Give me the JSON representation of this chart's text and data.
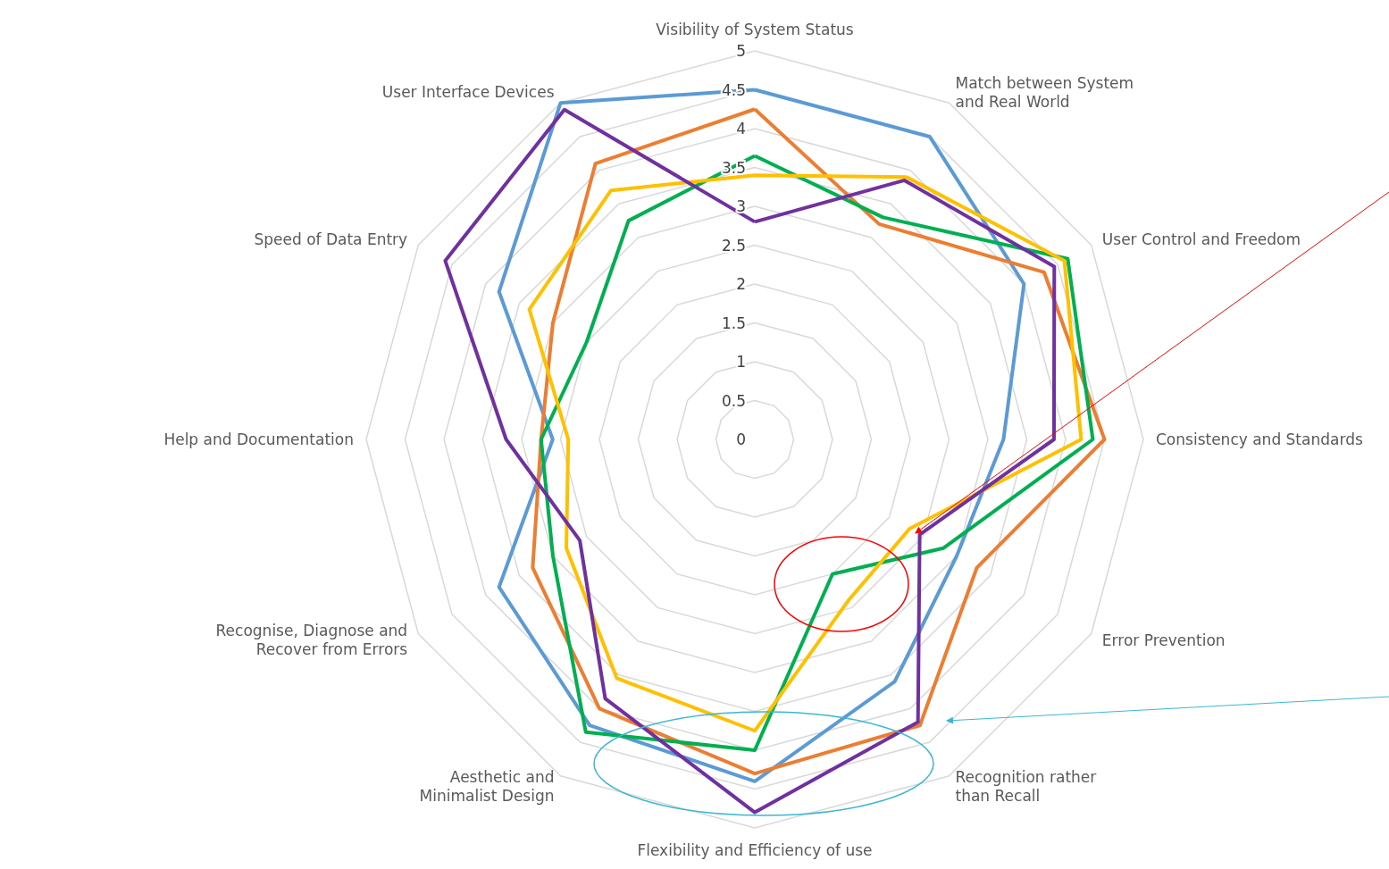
{
  "chart_data": {
    "type": "radar",
    "categories": [
      "Visibility of System Status",
      "Match between System and Real World",
      "User Control and Freedom",
      "Consistency and Standards",
      "Error Prevention",
      "Recognition rather than Recall",
      "Flexibility and Efficiency of use",
      "Aesthetic and Minimalist Design",
      "Recognise, Diagnose and Recover from Errors",
      "Help and Documentation",
      "Speed of Data Entry",
      "User Interface Devices"
    ],
    "series": [
      {
        "color": "#5b9bd5",
        "values": [
          4.5,
          4.5,
          4.0,
          3.2,
          3.0,
          3.6,
          4.4,
          4.25,
          3.8,
          2.6,
          3.8,
          5.0
        ]
      },
      {
        "color": "#ed7d31",
        "values": [
          4.25,
          3.2,
          4.3,
          4.5,
          3.3,
          4.25,
          4.3,
          4.0,
          3.3,
          2.75,
          3.0,
          4.1
        ]
      },
      {
        "color": "#00b050",
        "values": [
          3.65,
          3.3,
          4.65,
          4.35,
          2.8,
          2.0,
          4.0,
          4.35,
          3.0,
          2.75,
          2.5,
          3.25
        ]
      },
      {
        "color": "#ffc000",
        "values": [
          3.4,
          3.9,
          4.6,
          4.2,
          2.3,
          2.4,
          3.75,
          3.55,
          2.8,
          2.4,
          3.35,
          3.7
        ]
      },
      {
        "color": "#7030a0",
        "values": [
          2.8,
          3.85,
          4.45,
          3.85,
          2.45,
          4.2,
          4.8,
          3.85,
          2.6,
          3.2,
          4.6,
          4.9
        ]
      }
    ],
    "ylim": [
      0,
      5
    ],
    "yticks": [
      0,
      0.5,
      1,
      1.5,
      2,
      2.5,
      3,
      3.5,
      4,
      4.5,
      5
    ],
    "grid": true,
    "marker": "none",
    "line_style": "solid"
  }
}
